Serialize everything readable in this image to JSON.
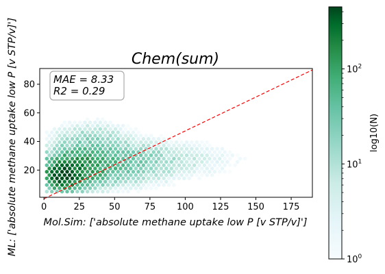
{
  "chart_data": {
    "type": "heatmap",
    "subtype": "hexbin",
    "title": "Chem(sum)",
    "xlabel": "Mol.Sim: ['absolute methane uptake low P [v STP/v]']",
    "ylabel": "ML: ['absolute methane uptake low P [v STP/v]']",
    "xlim": [
      -3,
      190
    ],
    "ylim": [
      1,
      91
    ],
    "xticks": [
      0,
      25,
      50,
      75,
      100,
      125,
      150,
      175
    ],
    "yticks": [
      20,
      40,
      60,
      80
    ],
    "annotation_lines": [
      "MAE = 8.33",
      "R2 = 0.29"
    ],
    "parity_line": {
      "from": [
        0,
        0
      ],
      "to": [
        190,
        90
      ],
      "color": "#ff0000",
      "style": "dashed"
    },
    "colorbar": {
      "label": "log10(N)",
      "scale": "log",
      "range": [
        1,
        450
      ],
      "ticks": [
        {
          "value": 1,
          "label": "10^0"
        },
        {
          "value": 10,
          "label": "10^1"
        },
        {
          "value": 100,
          "label": "10^2"
        }
      ]
    },
    "density_clusters": [
      {
        "x": 14,
        "y": 16,
        "peak": 420,
        "sx": 7,
        "sy": 5
      },
      {
        "x": 25,
        "y": 22,
        "peak": 140,
        "sx": 12,
        "sy": 7
      },
      {
        "x": 45,
        "y": 25,
        "peak": 40,
        "sx": 22,
        "sy": 8
      },
      {
        "x": 33,
        "y": 42,
        "peak": 15,
        "sx": 14,
        "sy": 6
      },
      {
        "x": 80,
        "y": 27,
        "peak": 8,
        "sx": 30,
        "sy": 7
      }
    ],
    "grid": false
  },
  "colors": {
    "hex_low": "#f7fcfd",
    "hex_mid": "#66c2a4",
    "hex_high": "#00441b",
    "parity": "#ff0000"
  }
}
